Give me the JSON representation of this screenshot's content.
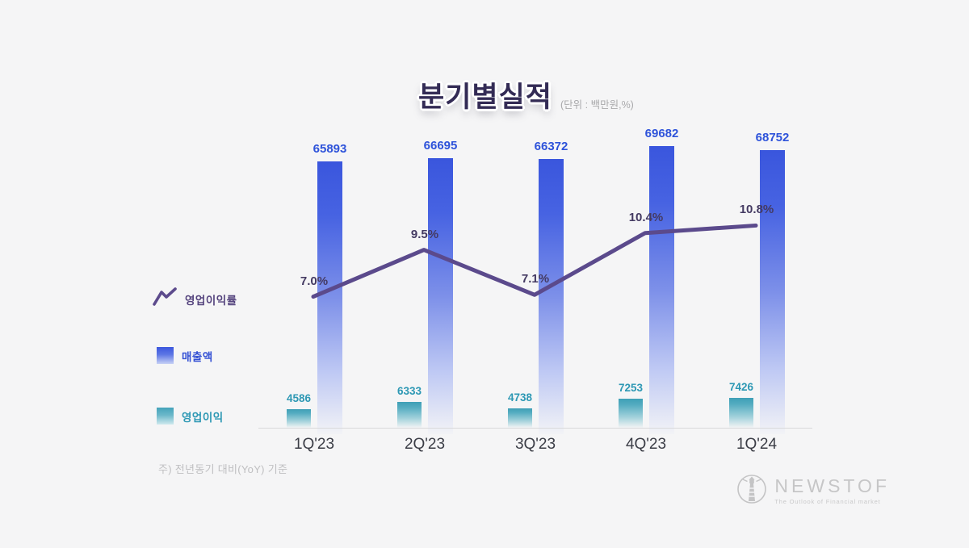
{
  "title": {
    "text": "분기별실적",
    "unit_note": "(단위 : 백만원,%)"
  },
  "legend": {
    "line_label": "영업이익률",
    "revenue_label": "매출액",
    "profit_label": "영업이익"
  },
  "footnote": "주) 전년동기 대비(YoY) 기준",
  "logo": {
    "name": "NEWSTOF",
    "tagline": "The Outlook of Financial market"
  },
  "colors": {
    "background": "#f5f5f6",
    "revenue_bar": "#3b57de",
    "profit_bar": "#44a3ba",
    "margin_line": "#5b4a8c",
    "revenue_label": "#2e53da",
    "profit_label": "#2d98b4",
    "pct_label": "#443a62",
    "title_text": "#332b55"
  },
  "chart_data": {
    "type": "bar",
    "title": "분기별실적",
    "unit": "(단위 : 백만원,%)",
    "categories": [
      "1Q'23",
      "2Q'23",
      "3Q'23",
      "4Q'23",
      "1Q'24"
    ],
    "series": [
      {
        "name": "매출액",
        "type": "bar",
        "color": "#3b57de",
        "values": [
          65893,
          66695,
          66372,
          69682,
          68752
        ],
        "value_labels": [
          "65893",
          "66695",
          "66372",
          "69682",
          "68752"
        ]
      },
      {
        "name": "영업이익",
        "type": "bar",
        "color": "#44a3ba",
        "values": [
          4586,
          6333,
          4738,
          7253,
          7426
        ],
        "value_labels": [
          "4586",
          "6333",
          "4738",
          "7253",
          "7426"
        ]
      },
      {
        "name": "영업이익률",
        "type": "line",
        "color": "#5b4a8c",
        "values": [
          7.0,
          9.5,
          7.1,
          10.4,
          10.8
        ],
        "value_labels": [
          "7.0%",
          "9.5%",
          "7.1%",
          "10.4%",
          "10.8%"
        ]
      }
    ],
    "ylabel": "",
    "xlabel": "",
    "grid": false,
    "legend_position": "left"
  }
}
